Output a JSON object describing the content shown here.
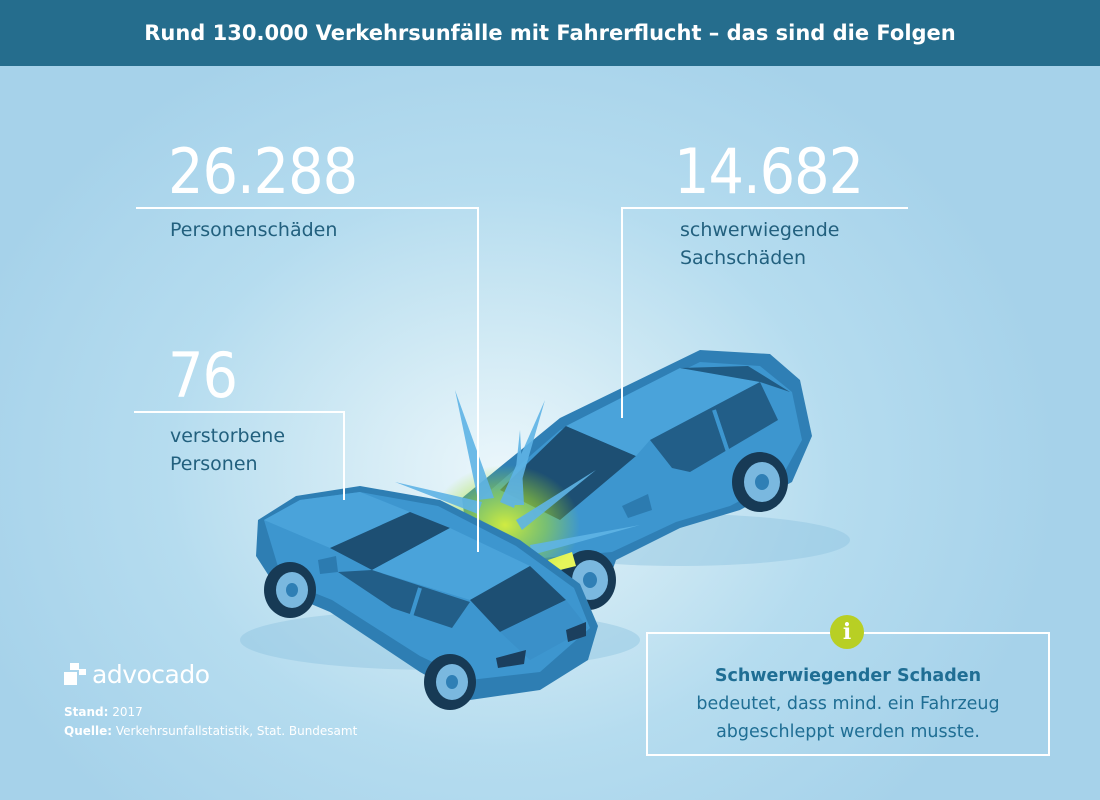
{
  "header": {
    "title": "Rund 130.000 Verkehrsunfälle mit Fahrerflucht – das sind die Folgen"
  },
  "stats": [
    {
      "value": "26.288",
      "label": "Personenschäden"
    },
    {
      "value": "14.682",
      "label_line1": "schwerwiegende",
      "label_line2": "Sachschäden"
    },
    {
      "value": "76",
      "label_line1": "verstorbene",
      "label_line2": "Personen"
    }
  ],
  "brand": {
    "logo_text": "advocado"
  },
  "footer": {
    "stand_label": "Stand:",
    "stand_value": "2017",
    "quelle_label": "Quelle:",
    "quelle_value": "Verkehrsunfallstatistik, Stat. Bundesamt"
  },
  "info": {
    "icon": "info-icon",
    "icon_glyph": "i",
    "title": "Schwerwiegender Schaden",
    "line1": "bedeutet, dass mind. ein Fahrzeug",
    "line2": "abgeschleppt werden musste."
  },
  "colors": {
    "header_bg": "#256d8d",
    "label_text": "#22607e",
    "car_body": "#3a8fc6",
    "accent_green": "#b8cf24"
  }
}
